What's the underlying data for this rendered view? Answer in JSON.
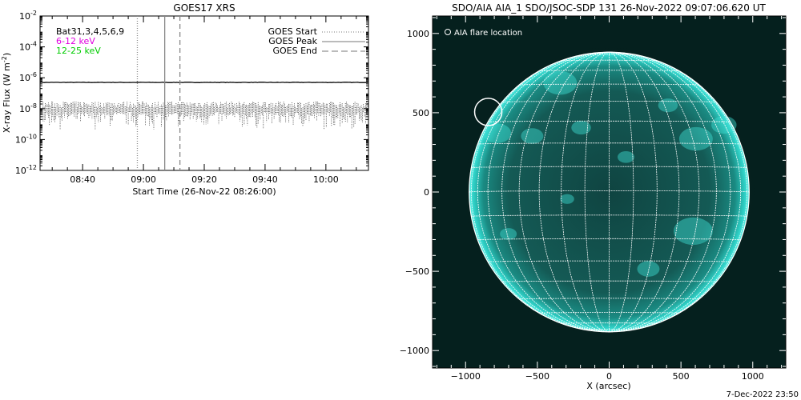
{
  "footer": {
    "timestamp": "7-Dec-2022 23:50"
  },
  "chart_data": [
    {
      "type": "line",
      "title": "GOES17 XRS",
      "xlabel": "Start Time (26-Nov-22 08:26:00)",
      "ylabel": "X-ray Flux (W m",
      "ylabel_sup": "-2",
      "ylabel_close": ")",
      "y_scale": "log",
      "ylim": [
        1e-12,
        0.01
      ],
      "x_range_time": [
        "08:26",
        "10:14"
      ],
      "x_ticks": [
        {
          "label": "08:40",
          "time": "08:40"
        },
        {
          "label": "09:00",
          "time": "09:00"
        },
        {
          "label": "09:20",
          "time": "09:20"
        },
        {
          "label": "09:40",
          "time": "09:40"
        },
        {
          "label": "10:00",
          "time": "10:00"
        }
      ],
      "y_ticks": [
        {
          "base": "10",
          "exp": "-2",
          "value": 0.01
        },
        {
          "base": "10",
          "exp": "-4",
          "value": 0.0001
        },
        {
          "base": "10",
          "exp": "-6",
          "value": 1e-06
        },
        {
          "base": "10",
          "exp": "-8",
          "value": 1e-08
        },
        {
          "base": "10",
          "exp": "-10",
          "value": 1e-10
        },
        {
          "base": "10",
          "exp": "-12",
          "value": 1e-12
        }
      ],
      "annotation": "Bat31,3,4,5,6,9",
      "series": [
        {
          "name": "6-12 keV",
          "color": "#e000e0",
          "approx_value": 5e-07
        },
        {
          "name": "12-25 keV",
          "color": "#00cc00",
          "approx_value": 1.5e-08
        }
      ],
      "event_lines": [
        {
          "name": "GOES Start",
          "time": "08:58",
          "style": "dotted"
        },
        {
          "name": "GOES Peak",
          "time": "09:07",
          "style": "solid"
        },
        {
          "name": "GOES End",
          "time": "09:12",
          "style": "dashed"
        }
      ],
      "legend_placement": "top-right"
    },
    {
      "type": "image",
      "title": "SDO/AIA AIA_1 SDO/JSOC-SDP 131 26-Nov-2022 09:07:06.620 UT",
      "xlabel": "X (arcsec)",
      "xlim": [
        -1230,
        1230
      ],
      "ylim": [
        -1110,
        1110
      ],
      "x_ticks": [
        {
          "label": "−1000",
          "value": -1000
        },
        {
          "label": "−500",
          "value": -500
        },
        {
          "label": "0",
          "value": 0
        },
        {
          "label": "500",
          "value": 500
        },
        {
          "label": "1000",
          "value": 1000
        }
      ],
      "y_ticks": [
        {
          "label": "1000",
          "value": 1000
        },
        {
          "label": "500",
          "value": 500
        },
        {
          "label": "0",
          "value": 0
        },
        {
          "label": "−500",
          "value": -500
        },
        {
          "label": "−1000",
          "value": -1000
        }
      ],
      "disk_radius_arcsec": 975,
      "flare_location": {
        "x": -842,
        "y": 505
      },
      "flare_marker_radius_arcsec": 95,
      "legend": "AIA flare location",
      "grid": true,
      "colors": {
        "disk": "#1bb7b0",
        "background": "#05201e"
      }
    }
  ]
}
